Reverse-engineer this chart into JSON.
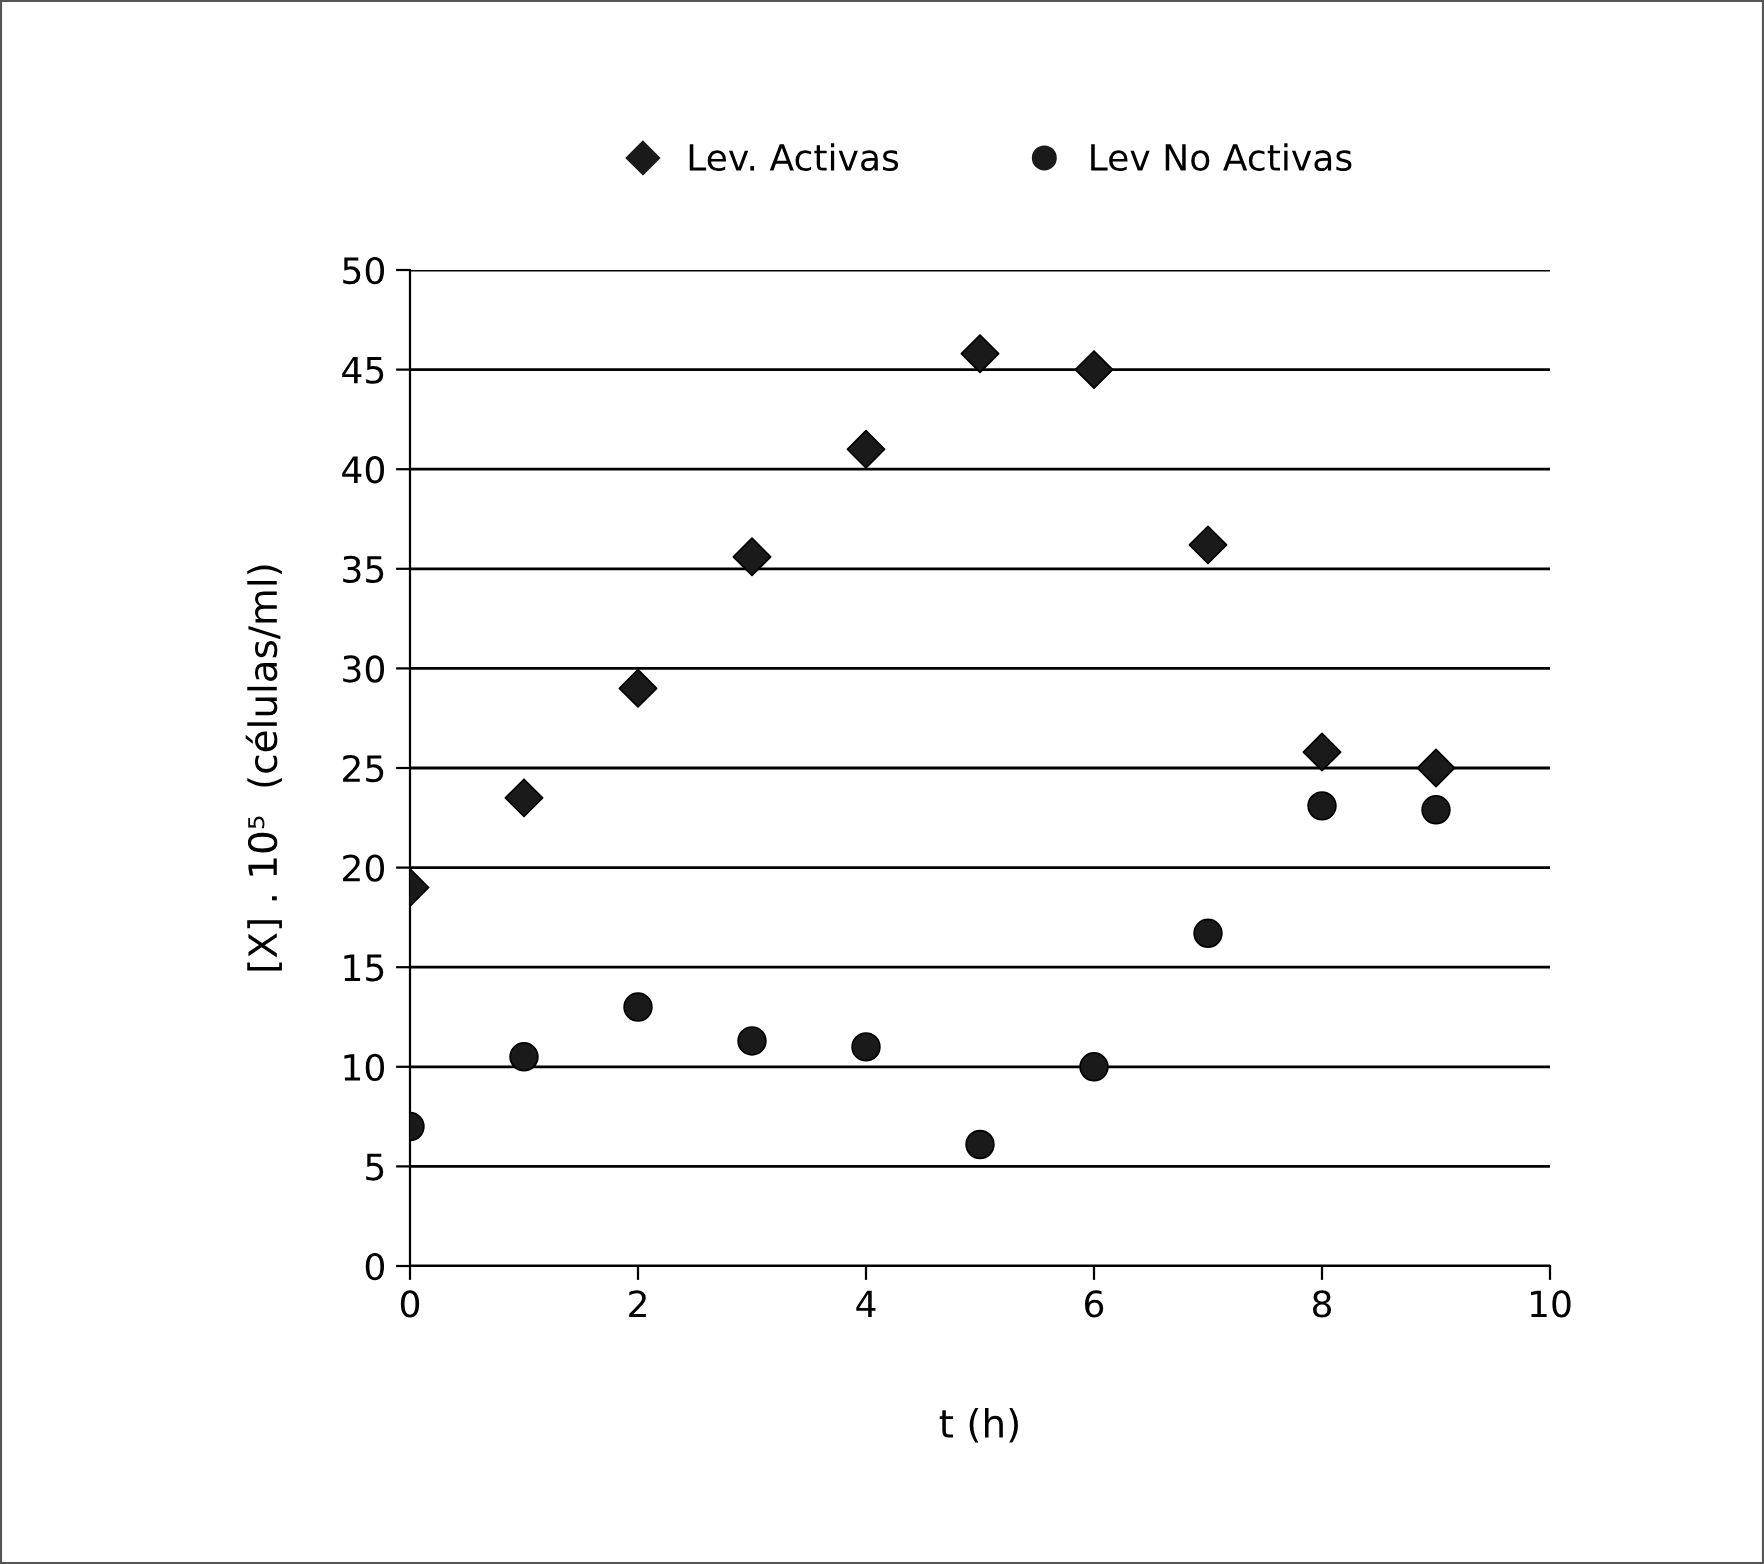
{
  "chart_data": {
    "type": "scatter",
    "xlabel": "t (h)",
    "ylabel": "[X] . 10⁵  (células/ml)",
    "xlim": [
      0,
      10
    ],
    "xticks": [
      0,
      2,
      4,
      6,
      8,
      10
    ],
    "ylim": [
      0,
      50
    ],
    "yticks": [
      0,
      5,
      10,
      15,
      20,
      25,
      30,
      35,
      40,
      45,
      50
    ],
    "grid": "y",
    "legend": "top",
    "series": [
      {
        "name": "Lev. Activas",
        "color": "#1a1a1a",
        "marker": "diamond",
        "x": [
          0,
          1,
          2,
          3,
          4,
          5,
          6,
          7,
          8,
          9
        ],
        "values": [
          19,
          23.5,
          29,
          35.6,
          41,
          45.8,
          45,
          36.2,
          25.8,
          25
        ]
      },
      {
        "name": "Lev No Activas",
        "color": "#1a1a1a",
        "marker": "circle",
        "x": [
          0,
          1,
          2,
          3,
          4,
          5,
          6,
          7,
          8,
          9
        ],
        "values": [
          7,
          10.5,
          13,
          11.3,
          11,
          6.1,
          10,
          16.7,
          23.1,
          22.9
        ]
      }
    ]
  }
}
